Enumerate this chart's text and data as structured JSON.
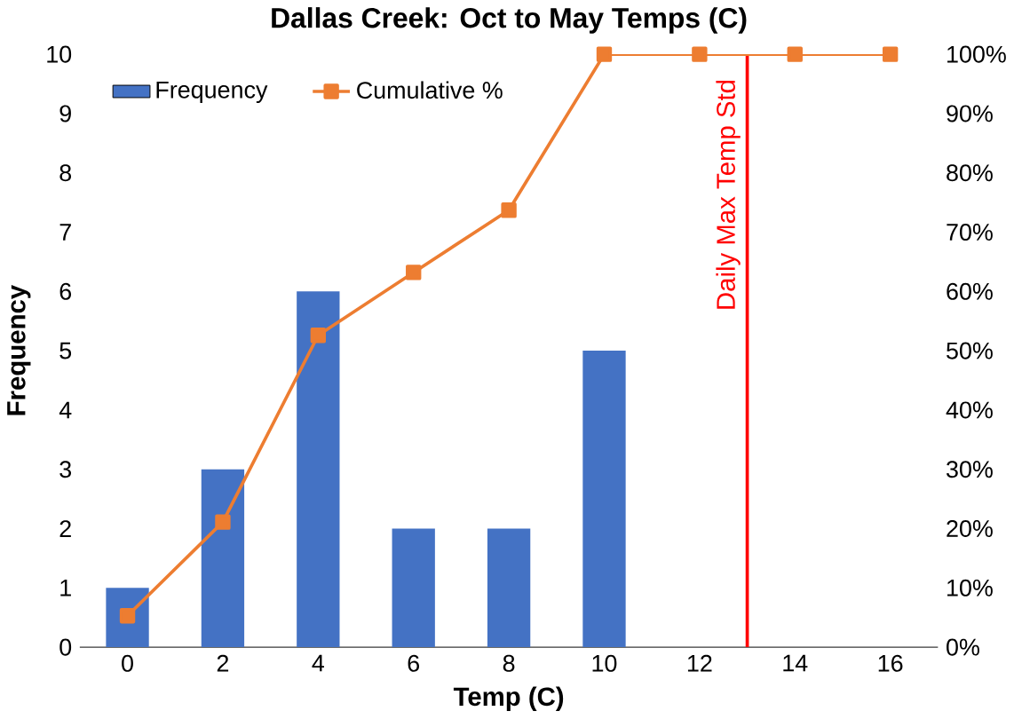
{
  "chart_data": {
    "type": "bar",
    "title": "Dallas Creek: Oct to May Temps (C)",
    "xlabel": "Temp (C)",
    "ylabel": "Frequency",
    "x": [
      0,
      2,
      4,
      6,
      8,
      10,
      12,
      14,
      16
    ],
    "xlim": [
      -1,
      17
    ],
    "xticks": [
      0,
      2,
      4,
      6,
      8,
      10,
      12,
      14,
      16
    ],
    "ylim": [
      0,
      10
    ],
    "yticks": [
      0,
      1,
      2,
      3,
      4,
      5,
      6,
      7,
      8,
      9,
      10
    ],
    "y2lim": [
      0,
      100
    ],
    "y2ticks": [
      {
        "value": 0,
        "label": "0%"
      },
      {
        "value": 10,
        "label": "10%"
      },
      {
        "value": 20,
        "label": "20%"
      },
      {
        "value": 30,
        "label": "30%"
      },
      {
        "value": 40,
        "label": "40%"
      },
      {
        "value": 50,
        "label": "50%"
      },
      {
        "value": 60,
        "label": "60%"
      },
      {
        "value": 70,
        "label": "70%"
      },
      {
        "value": 80,
        "label": "80%"
      },
      {
        "value": 90,
        "label": "90%"
      },
      {
        "value": 100,
        "label": "100%"
      }
    ],
    "series": [
      {
        "name": "Frequency",
        "color": "#4472c4",
        "values": [
          1,
          3,
          6,
          2,
          2,
          5,
          0,
          0,
          0
        ]
      },
      {
        "name": "Cumulative %",
        "type": "line",
        "axis": "y2",
        "color": "#ed7d31",
        "values": [
          5.3,
          21.1,
          52.6,
          63.2,
          73.7,
          100,
          100,
          100,
          100
        ]
      }
    ],
    "marker": "square",
    "legend": "top left",
    "grid": false,
    "ref_lines": [
      {
        "axis": "x",
        "value": 13,
        "label": "Daily Max Temp Std",
        "color": "#ff0000"
      }
    ]
  }
}
